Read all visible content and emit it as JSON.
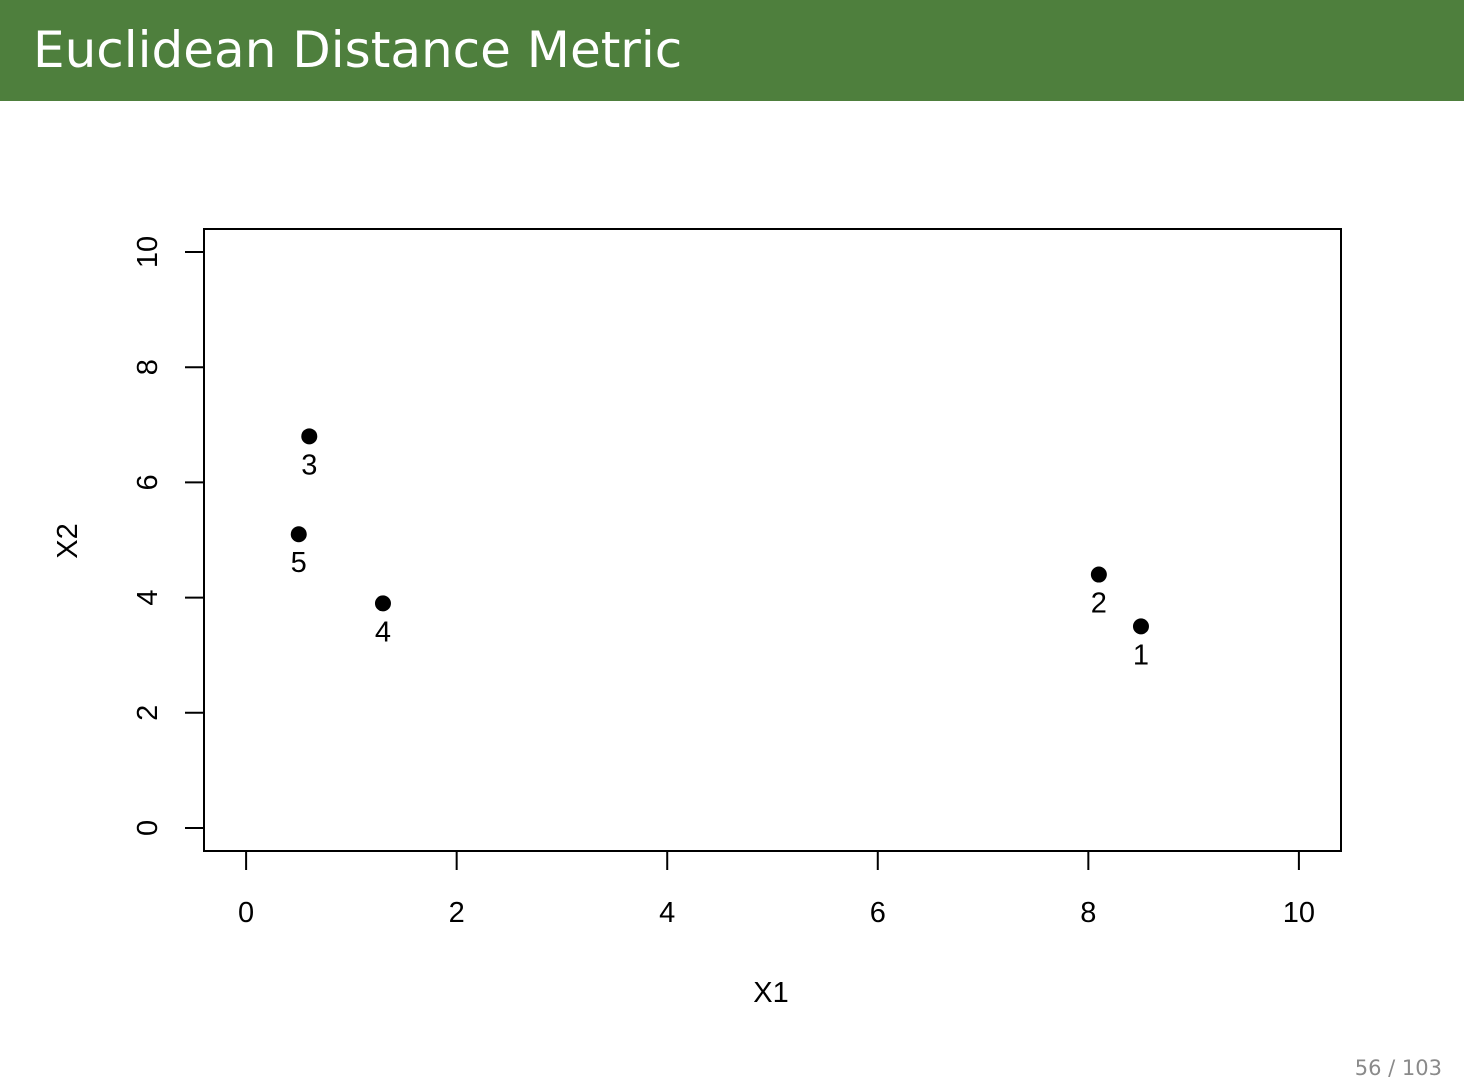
{
  "slide": {
    "title": "Euclidean Distance Metric",
    "page_number": "56 / 103",
    "accent_color": "#4e7f3d"
  },
  "chart_data": {
    "type": "scatter",
    "title": "",
    "xlabel": "X1",
    "ylabel": "X2",
    "xlim": [
      -0.4,
      10.4
    ],
    "ylim": [
      -0.4,
      10.4
    ],
    "xticks": [
      0,
      2,
      4,
      6,
      8,
      10
    ],
    "yticks": [
      0,
      2,
      4,
      6,
      8,
      10
    ],
    "grid": false,
    "points": [
      {
        "label": "1",
        "x": 8.5,
        "y": 3.5
      },
      {
        "label": "2",
        "x": 8.1,
        "y": 4.4
      },
      {
        "label": "3",
        "x": 0.6,
        "y": 6.8
      },
      {
        "label": "4",
        "x": 1.3,
        "y": 3.9
      },
      {
        "label": "5",
        "x": 0.5,
        "y": 5.1
      }
    ],
    "marker_color": "#000000"
  }
}
